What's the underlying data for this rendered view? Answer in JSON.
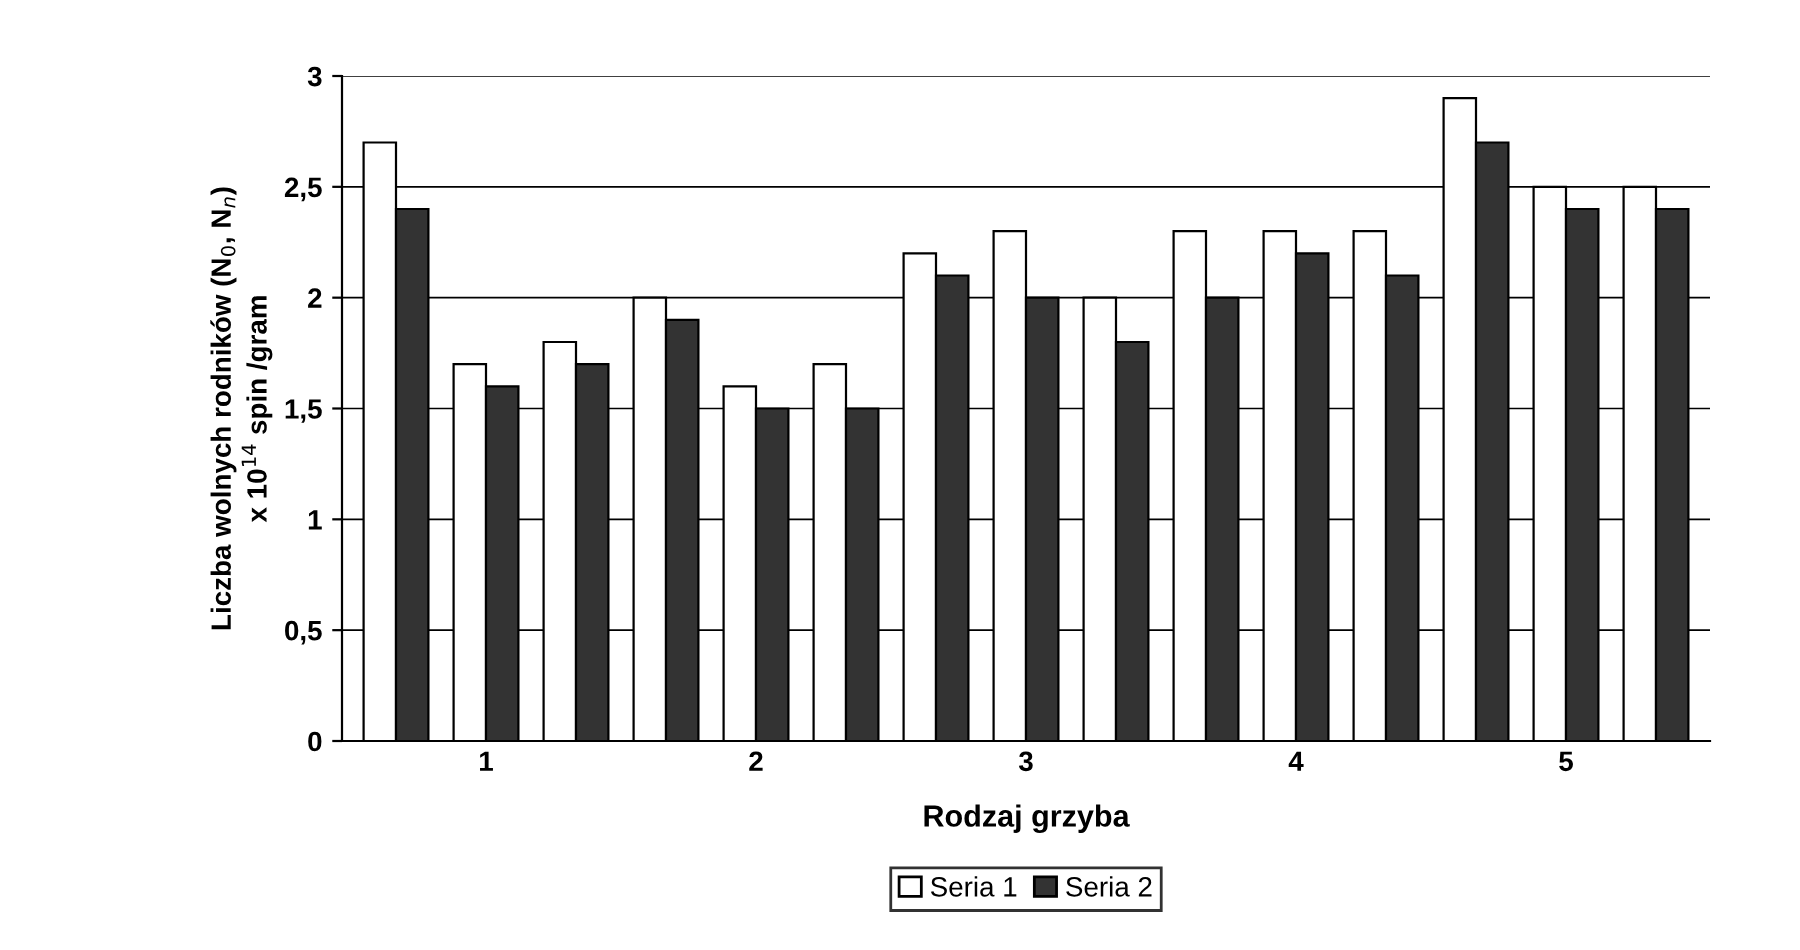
{
  "chart_data": {
    "type": "bar",
    "xlabel": "Rodzaj grzyba",
    "ylabel": "Liczba wolnych rodników (N$_{0}$, N$_{n}$)\nx 10$^{14}$ spin /gram",
    "categories": [
      null,
      "1",
      null,
      null,
      "2",
      null,
      null,
      "3",
      null,
      null,
      "4",
      null,
      null,
      "5",
      null
    ],
    "series": [
      {
        "name": "Seria 1",
        "color": "#ffffff",
        "values": [
          2.7,
          1.7,
          1.8,
          2.0,
          1.6,
          1.7,
          2.2,
          2.3,
          2.0,
          2.3,
          2.3,
          2.3,
          2.9,
          2.5,
          2.5
        ]
      },
      {
        "name": "Seria 2",
        "color": "#333333",
        "values": [
          2.4,
          1.6,
          1.7,
          1.9,
          1.5,
          1.5,
          2.1,
          2.0,
          1.8,
          2.0,
          2.2,
          2.1,
          2.7,
          2.4,
          2.4
        ]
      }
    ],
    "ylim": [
      0,
      3
    ],
    "yticks": [
      0,
      {
        "value": 0.5,
        "label": "0,5"
      },
      1,
      {
        "value": 1.5,
        "label": "1,5"
      },
      2,
      {
        "value": 2.5,
        "label": "2,5"
      },
      3
    ],
    "grid": "y",
    "legend": "bottom"
  }
}
